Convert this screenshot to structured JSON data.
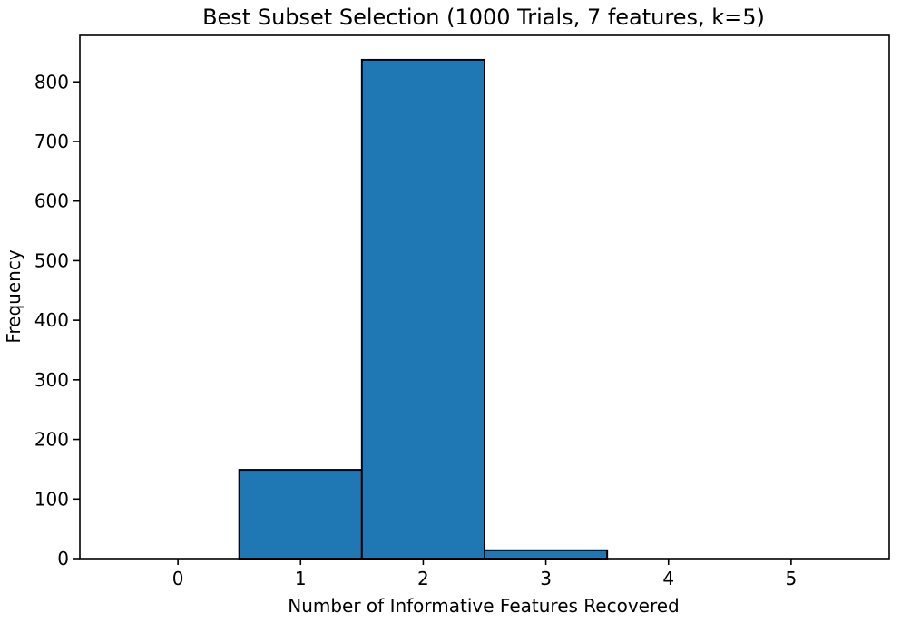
{
  "chart_data": {
    "type": "bar",
    "title": "Best Subset Selection (1000 Trials, 7 features, k=5)",
    "xlabel": "Number of Informative Features Recovered",
    "ylabel": "Frequency",
    "categories": [
      "0",
      "1",
      "2",
      "3",
      "4",
      "5"
    ],
    "values": [
      0,
      149,
      837,
      14,
      0,
      0
    ],
    "xlim": [
      -0.8,
      5.8
    ],
    "ylim": [
      0,
      878
    ],
    "xticks": [
      0,
      1,
      2,
      3,
      4,
      5
    ],
    "yticks": [
      0,
      100,
      200,
      300,
      400,
      500,
      600,
      700,
      800
    ],
    "bar_color": "#1f77b4",
    "edge_color": "#000000",
    "grid": false
  }
}
